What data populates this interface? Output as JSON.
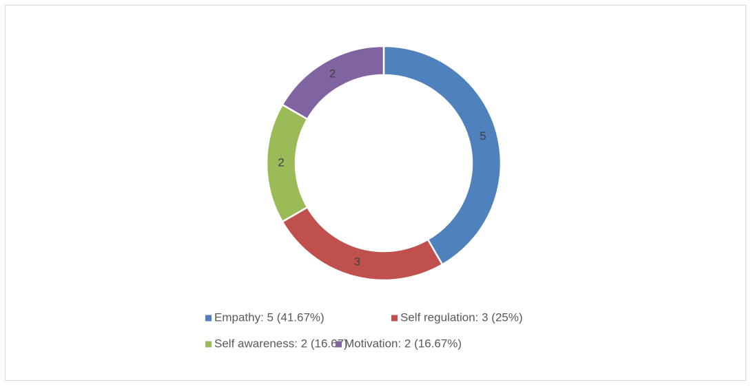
{
  "chart_data": {
    "type": "donut",
    "categories": [
      "Empathy: 5 (41.67%)",
      "Self regulation: 3 (25%)",
      "Self awareness: 2 (16.67)",
      "Motivation: 2 (16.67%)"
    ],
    "values": [
      5,
      3,
      2,
      2
    ],
    "colors": [
      "#4f81bd",
      "#c0504d",
      "#9bbb59",
      "#8064a2"
    ],
    "legend": "bottom"
  }
}
